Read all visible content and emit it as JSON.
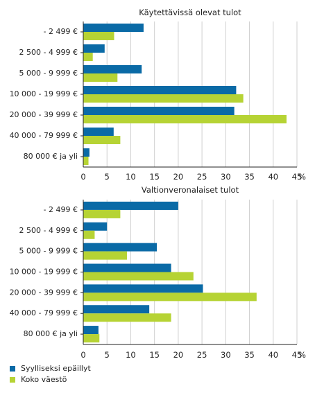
{
  "chart_data": [
    {
      "type": "bar",
      "orientation": "horizontal",
      "title": "Käytettävissä olevat tulot",
      "categories": [
        "- 2 499 €",
        "2 500 - 4 999 €",
        "5 000 - 9 999 €",
        "10 000 - 19 999 €",
        "20 000 - 39 999 €",
        "40 000 - 79 999 €",
        "80 000 € ja yli"
      ],
      "series": [
        {
          "name": "Syylliseksi epäillyt",
          "color": "#0a6aa6",
          "values": [
            12.7,
            4.5,
            12.3,
            32.2,
            31.8,
            6.4,
            1.3
          ]
        },
        {
          "name": "Koko väestö",
          "color": "#b6d334",
          "values": [
            6.5,
            2.0,
            7.2,
            33.7,
            42.8,
            7.8,
            1.1
          ]
        }
      ],
      "xlim": [
        0,
        45
      ],
      "xticks": [
        "0",
        "5",
        "10",
        "15",
        "20",
        "25",
        "30",
        "35",
        "40",
        "45"
      ],
      "unit": "%",
      "grid": true
    },
    {
      "type": "bar",
      "orientation": "horizontal",
      "title": "Valtionveronalaiset tulot",
      "categories": [
        "- 2 499 €",
        "2 500 - 4 999 €",
        "5 000 - 9 999 €",
        "10 000 - 19 999 €",
        "20 000 - 39 999 €",
        "40 000 - 79 999 €",
        "80 000 € ja yli"
      ],
      "series": [
        {
          "name": "Syylliseksi epäillyt",
          "color": "#0a6aa6",
          "values": [
            20.0,
            5.0,
            15.5,
            18.5,
            25.2,
            13.9,
            3.2
          ]
        },
        {
          "name": "Koko väestö",
          "color": "#b6d334",
          "values": [
            7.8,
            2.4,
            9.2,
            23.2,
            36.5,
            18.5,
            3.4
          ]
        }
      ],
      "xlim": [
        0,
        45
      ],
      "xticks": [
        "0",
        "5",
        "10",
        "15",
        "20",
        "25",
        "30",
        "35",
        "40",
        "45"
      ],
      "unit": "%",
      "grid": true
    }
  ],
  "legend": {
    "placement": "bottom-left",
    "items": [
      {
        "label": "Syylliseksi epäillyt",
        "color": "#0a6aa6"
      },
      {
        "label": "Koko väestö",
        "color": "#b6d334"
      }
    ]
  }
}
